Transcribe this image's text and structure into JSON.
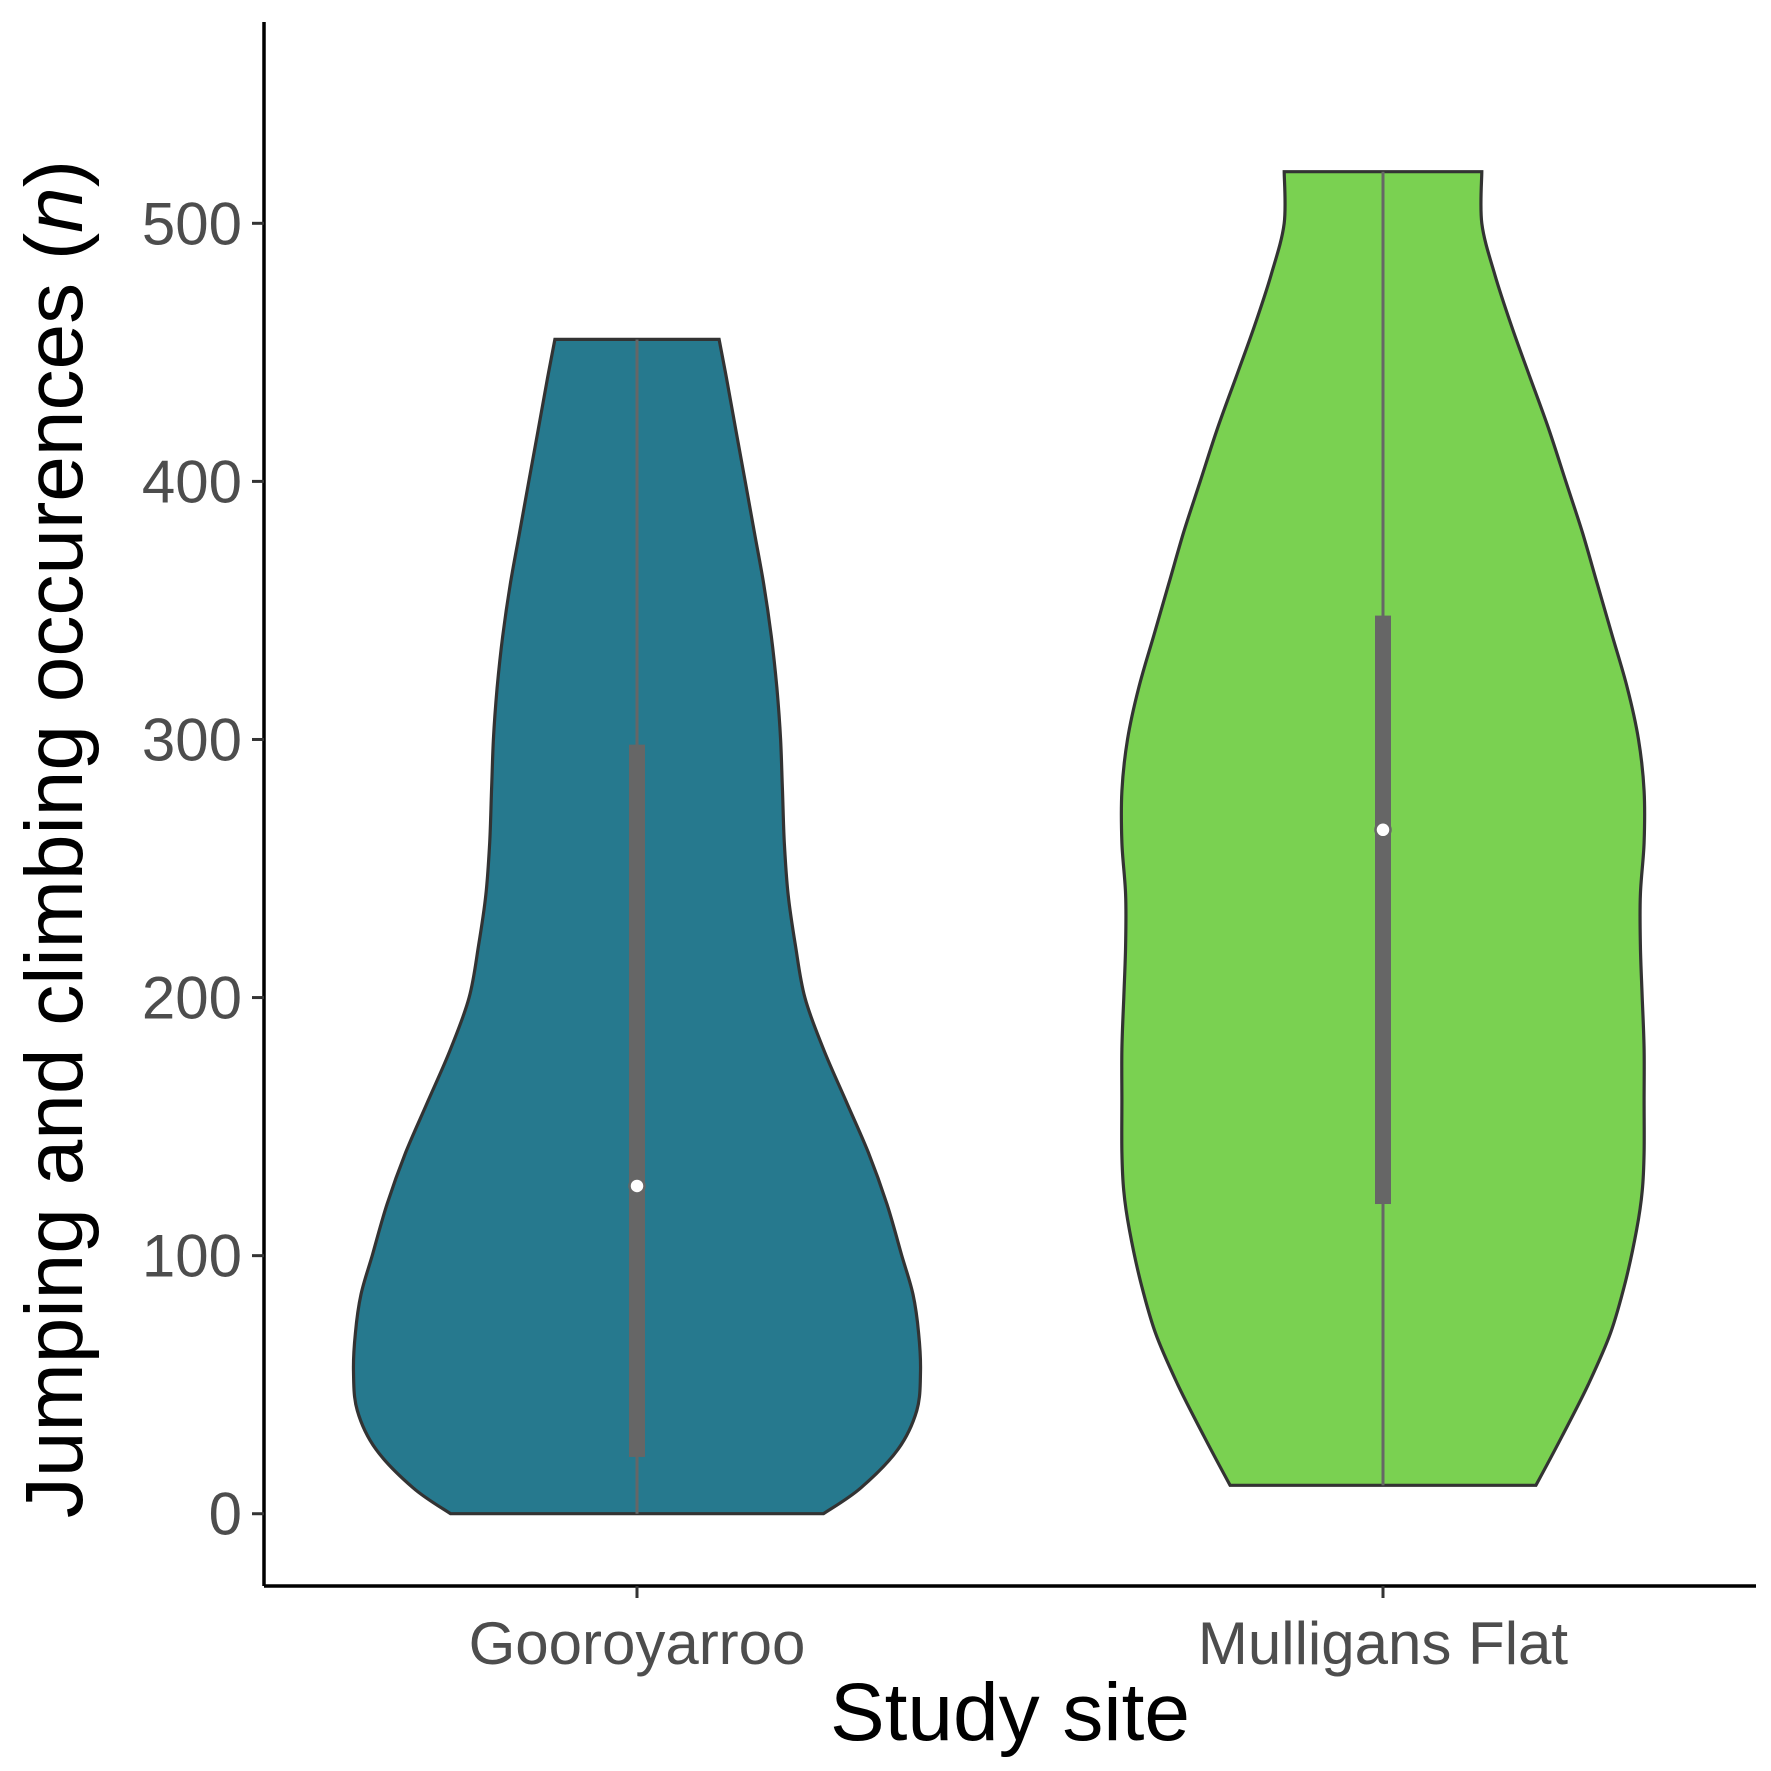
{
  "chart_data": {
    "type": "violin",
    "title": "",
    "xlabel": "Study site",
    "ylabel": {
      "prefix": "Jumping and climbing occurences (",
      "italic": "n",
      "suffix": ")"
    },
    "ylim": [
      -28,
      578
    ],
    "yticks": [
      0,
      100,
      200,
      300,
      400,
      500
    ],
    "grid": false,
    "legend": "none",
    "categories": [
      "Gooroyarroo",
      "Mulligans Flat"
    ],
    "series": [
      {
        "category": "Gooroyarroo",
        "color": "#26798E",
        "min": 0,
        "q1": 22,
        "median": 127,
        "q3": 298,
        "max": 455,
        "density_profile": [
          [
            0,
            0.5
          ],
          [
            10,
            0.6
          ],
          [
            25,
            0.7
          ],
          [
            40,
            0.75
          ],
          [
            55,
            0.76
          ],
          [
            70,
            0.755
          ],
          [
            85,
            0.74
          ],
          [
            100,
            0.71
          ],
          [
            120,
            0.67
          ],
          [
            140,
            0.62
          ],
          [
            160,
            0.56
          ],
          [
            180,
            0.5
          ],
          [
            200,
            0.45
          ],
          [
            220,
            0.425
          ],
          [
            240,
            0.405
          ],
          [
            260,
            0.395
          ],
          [
            280,
            0.39
          ],
          [
            300,
            0.385
          ],
          [
            320,
            0.375
          ],
          [
            340,
            0.36
          ],
          [
            360,
            0.34
          ],
          [
            380,
            0.315
          ],
          [
            400,
            0.29
          ],
          [
            420,
            0.265
          ],
          [
            440,
            0.24
          ],
          [
            455,
            0.22
          ]
        ]
      },
      {
        "category": "Mulligans Flat",
        "color": "#7AD151",
        "min": 11,
        "q1": 120,
        "median": 265,
        "q3": 348,
        "max": 520,
        "density_profile": [
          [
            11,
            0.41
          ],
          [
            30,
            0.48
          ],
          [
            50,
            0.55
          ],
          [
            70,
            0.61
          ],
          [
            90,
            0.65
          ],
          [
            110,
            0.68
          ],
          [
            125,
            0.695
          ],
          [
            140,
            0.7
          ],
          [
            160,
            0.7
          ],
          [
            180,
            0.7
          ],
          [
            200,
            0.695
          ],
          [
            220,
            0.69
          ],
          [
            240,
            0.69
          ],
          [
            260,
            0.7
          ],
          [
            280,
            0.7
          ],
          [
            300,
            0.685
          ],
          [
            320,
            0.655
          ],
          [
            340,
            0.615
          ],
          [
            360,
            0.575
          ],
          [
            380,
            0.535
          ],
          [
            400,
            0.49
          ],
          [
            420,
            0.445
          ],
          [
            440,
            0.395
          ],
          [
            460,
            0.345
          ],
          [
            480,
            0.3
          ],
          [
            500,
            0.265
          ],
          [
            520,
            0.265
          ]
        ]
      }
    ]
  }
}
